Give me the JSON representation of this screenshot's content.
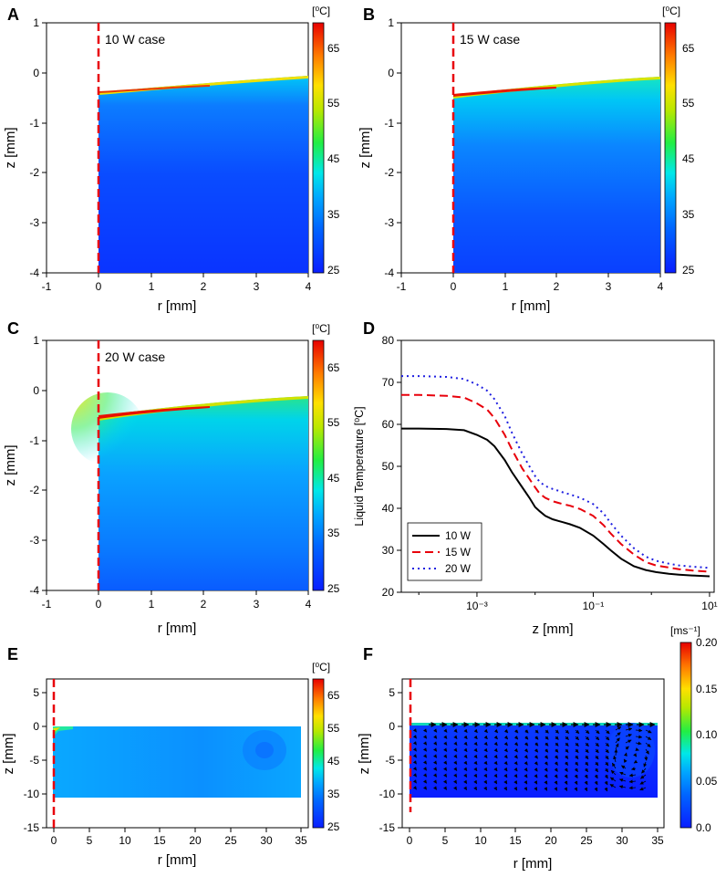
{
  "figure": {
    "panels": [
      {
        "letter": "A",
        "type": "heatmap",
        "xlabel": "r [mm]",
        "ylabel": "z [mm]",
        "xlim": [
          -1,
          4
        ],
        "ylim": [
          -4,
          1
        ],
        "xticks": [
          "-1",
          "0",
          "1",
          "2",
          "3",
          "4"
        ],
        "yticks": [
          "-4",
          "-3",
          "-2",
          "-1",
          "0",
          "1"
        ],
        "annotation": "10 W case",
        "unit": "[⁰C]",
        "colorbar_ticks": [
          "25",
          "35",
          "45",
          "55",
          "65"
        ],
        "colorbar_range": [
          25,
          70
        ]
      },
      {
        "letter": "B",
        "type": "heatmap",
        "xlabel": "r [mm]",
        "ylabel": "z [mm]",
        "xlim": [
          -1,
          4
        ],
        "ylim": [
          -4,
          1
        ],
        "xticks": [
          "-1",
          "0",
          "1",
          "2",
          "3",
          "4"
        ],
        "yticks": [
          "-4",
          "-3",
          "-2",
          "-1",
          "0",
          "1"
        ],
        "annotation": "15 W case",
        "unit": "[⁰C]",
        "colorbar_ticks": [
          "25",
          "35",
          "45",
          "55",
          "65"
        ],
        "colorbar_range": [
          25,
          70
        ]
      },
      {
        "letter": "C",
        "type": "heatmap",
        "xlabel": "r [mm]",
        "ylabel": "z [mm]",
        "xlim": [
          -1,
          4
        ],
        "ylim": [
          -4,
          1
        ],
        "xticks": [
          "-1",
          "0",
          "1",
          "2",
          "3",
          "4"
        ],
        "yticks": [
          "-4",
          "-3",
          "-2",
          "-1",
          "0",
          "1"
        ],
        "annotation": "20 W case",
        "unit": "[⁰C]",
        "colorbar_ticks": [
          "25",
          "35",
          "45",
          "55",
          "65"
        ],
        "colorbar_range": [
          25,
          70
        ]
      },
      {
        "letter": "E",
        "type": "heatmap",
        "xlabel": "r [mm]",
        "ylabel": "z [mm]",
        "xlim": [
          -1,
          36
        ],
        "ylim": [
          -15,
          7
        ],
        "xticks": [
          "0",
          "5",
          "10",
          "15",
          "20",
          "25",
          "30",
          "35"
        ],
        "yticks": [
          "-15",
          "-10",
          "-5",
          "0",
          "5"
        ],
        "annotation": "",
        "unit": "[⁰C]",
        "colorbar_ticks": [
          "25",
          "35",
          "45",
          "55",
          "65"
        ],
        "colorbar_range": [
          25,
          70
        ]
      },
      {
        "letter": "F",
        "type": "heatmap",
        "xlabel": "r [mm]",
        "ylabel": "z [mm]",
        "xlim": [
          -1,
          36
        ],
        "ylim": [
          -15,
          7
        ],
        "xticks": [
          "0",
          "5",
          "10",
          "15",
          "20",
          "25",
          "30",
          "35"
        ],
        "yticks": [
          "-15",
          "-10",
          "-5",
          "0",
          "5"
        ],
        "annotation": "",
        "unit": "[ms⁻¹]",
        "colorbar_ticks": [
          "0.0",
          "0.05",
          "0.10",
          "0.15",
          "0.20"
        ],
        "colorbar_range": [
          0,
          0.2
        ]
      }
    ]
  },
  "chart_data": {
    "type": "line",
    "letter": "D",
    "xlabel": "z [mm]",
    "ylabel": "Liquid Temperature [⁰C]",
    "xscale": "log",
    "xlim": [
      5e-05,
      12
    ],
    "ylim": [
      20,
      80
    ],
    "xticks": [
      "10⁻³",
      "10⁻¹",
      "10¹"
    ],
    "yticks": [
      "20",
      "30",
      "40",
      "50",
      "60",
      "70",
      "80"
    ],
    "legend_position": "bottom-left",
    "series": [
      {
        "name": "10 W",
        "color": "#000000",
        "dash": "",
        "x": [
          5e-05,
          0.0001,
          0.0003,
          0.0006,
          0.001,
          0.0015,
          0.002,
          0.003,
          0.004,
          0.006,
          0.008,
          0.01,
          0.012,
          0.015,
          0.02,
          0.025,
          0.03,
          0.04,
          0.06,
          0.1,
          0.15,
          0.2,
          0.3,
          0.5,
          0.8,
          1.2,
          2,
          3,
          5,
          10
        ],
        "y": [
          59,
          59,
          58.9,
          58.6,
          57.5,
          56.3,
          54.8,
          51.5,
          48.6,
          45,
          42.5,
          40.3,
          39.3,
          38.2,
          37.4,
          37,
          36.7,
          36.2,
          35.3,
          33.5,
          31.5,
          30,
          28,
          26.2,
          25.3,
          24.8,
          24.4,
          24.2,
          24.0,
          23.8
        ]
      },
      {
        "name": "15 W",
        "color": "#e8000b",
        "dash": "9,5",
        "x": [
          5e-05,
          0.0001,
          0.0003,
          0.0006,
          0.001,
          0.0015,
          0.002,
          0.003,
          0.004,
          0.006,
          0.008,
          0.01,
          0.012,
          0.015,
          0.02,
          0.025,
          0.03,
          0.04,
          0.06,
          0.1,
          0.15,
          0.2,
          0.3,
          0.5,
          0.8,
          1.2,
          2,
          3,
          5,
          10
        ],
        "y": [
          67,
          67,
          66.8,
          66.4,
          65,
          63.5,
          61.5,
          57.5,
          54,
          49.5,
          47,
          45,
          43.5,
          42.5,
          41.7,
          41.3,
          41,
          40.6,
          39.8,
          38.2,
          36,
          34,
          31.5,
          29,
          27.2,
          26.4,
          25.9,
          25.5,
          25.2,
          24.9
        ]
      },
      {
        "name": "20 W",
        "color": "#1f1fe0",
        "dash": "2,4",
        "x": [
          5e-05,
          0.0001,
          0.0003,
          0.0006,
          0.001,
          0.0015,
          0.002,
          0.003,
          0.004,
          0.006,
          0.008,
          0.01,
          0.012,
          0.015,
          0.02,
          0.025,
          0.03,
          0.04,
          0.06,
          0.1,
          0.15,
          0.2,
          0.3,
          0.5,
          0.8,
          1.2,
          2,
          3,
          5,
          10
        ],
        "y": [
          71.5,
          71.5,
          71.3,
          70.8,
          69.5,
          68,
          66,
          62,
          58,
          53,
          50,
          47.7,
          46.3,
          45.3,
          44.6,
          44.2,
          43.8,
          43.3,
          42.5,
          41,
          38.8,
          36.5,
          33.5,
          30.5,
          28.5,
          27.5,
          26.8,
          26.4,
          26.1,
          25.8
        ]
      }
    ]
  }
}
